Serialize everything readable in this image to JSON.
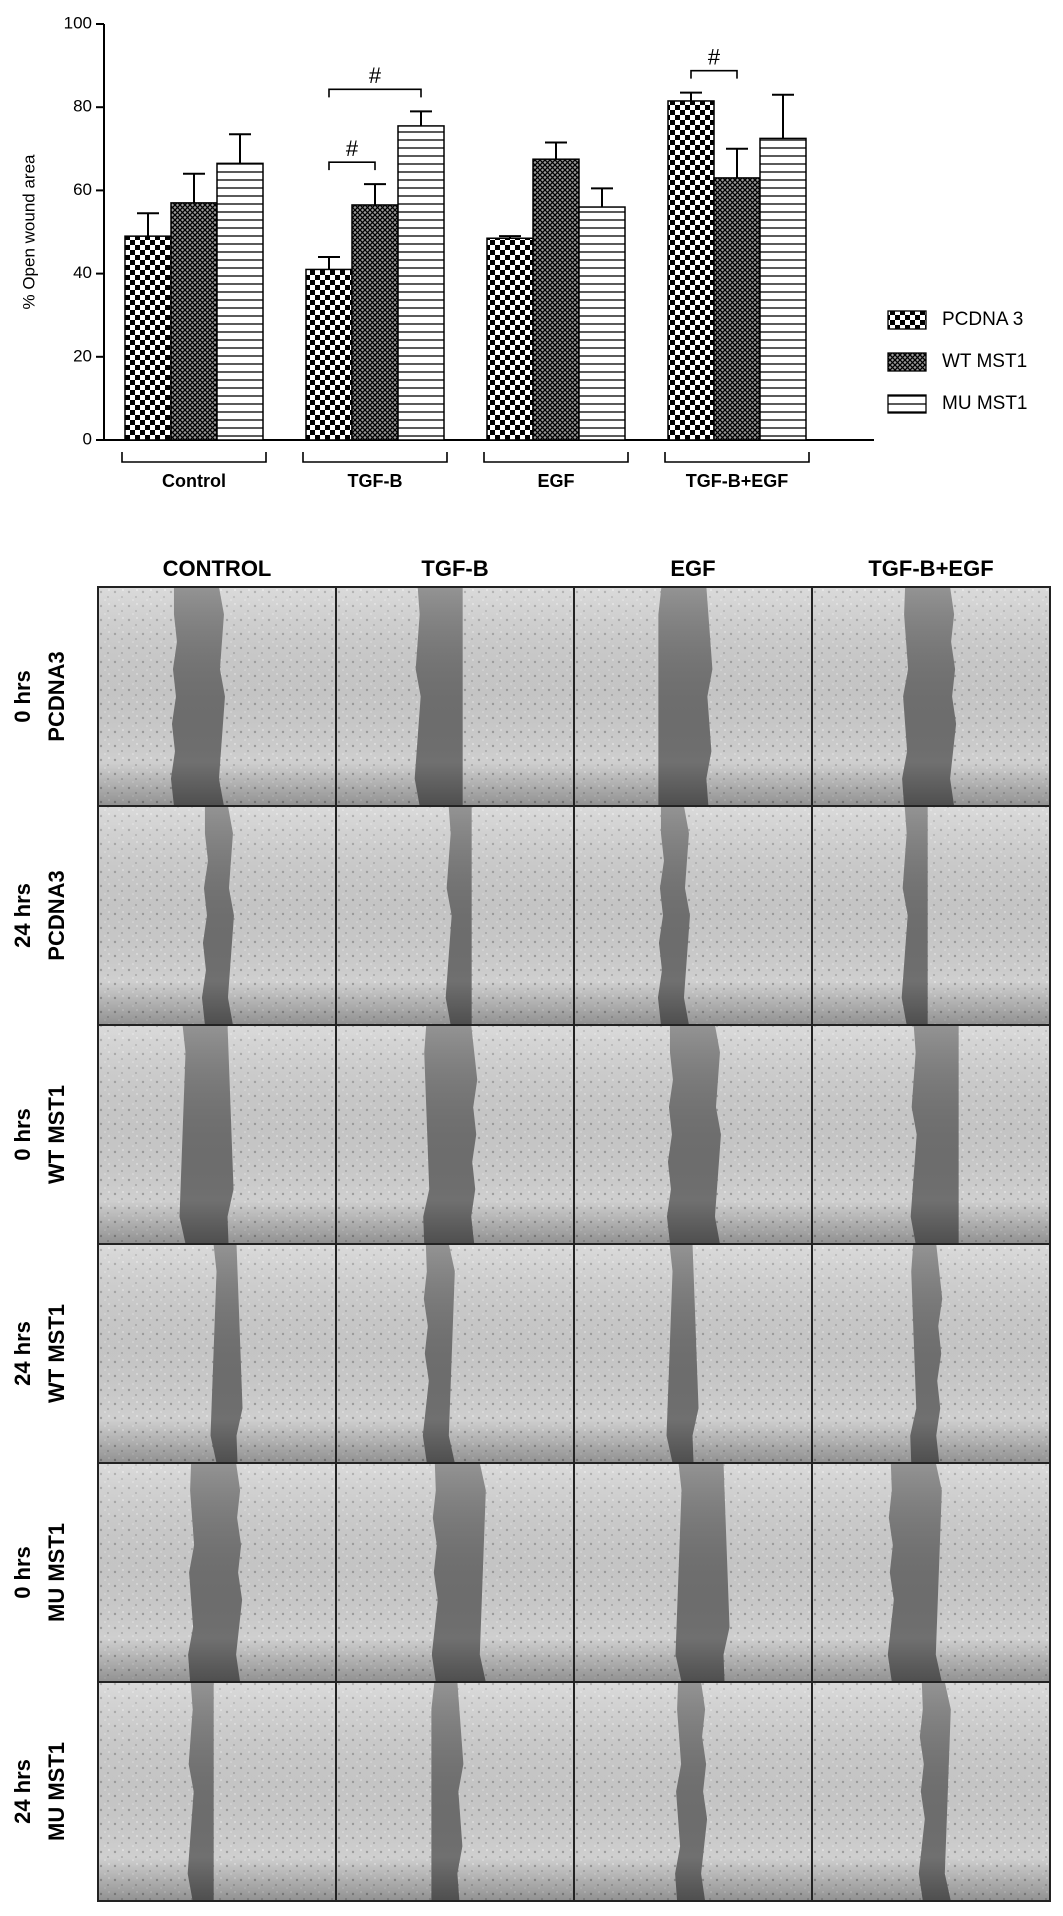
{
  "chart_data": {
    "type": "bar",
    "y_label": "% Open wound area",
    "categories": [
      "Control",
      "TGF-B",
      "EGF",
      "TGF-B+EGF"
    ],
    "series": [
      {
        "name": "PCDNA 3",
        "color": "#000000",
        "values": [
          49,
          41,
          48.5,
          81.5
        ],
        "errors": [
          5.5,
          3,
          0.5,
          2
        ]
      },
      {
        "name": "WT MST1",
        "color": "#000000",
        "values": [
          57,
          56.5,
          67.5,
          63
        ],
        "errors": [
          7,
          5,
          4,
          7
        ]
      },
      {
        "name": "MU MST1",
        "color": "#000000",
        "values": [
          66.5,
          75.5,
          56,
          72.5
        ],
        "errors": [
          7,
          3.5,
          4.5,
          10.5
        ]
      }
    ],
    "ylim": [
      0,
      100
    ],
    "yticks": [
      0,
      20,
      40,
      60,
      80,
      100
    ],
    "annotations": [
      {
        "text": "#",
        "category": 1,
        "from_series": 0,
        "to_series": 1
      },
      {
        "text": "#",
        "category": 1,
        "from_series": 0,
        "to_series": 2
      },
      {
        "text": "#",
        "category": 3,
        "from_series": 0,
        "to_series": 1
      }
    ]
  },
  "image_grid": {
    "columns": [
      "CONTROL",
      "TGF-B",
      "EGF",
      "TGF-B+EGF"
    ],
    "rows": [
      {
        "time": "0 hrs",
        "group": "PCDNA3"
      },
      {
        "time": "24 hrs",
        "group": "PCDNA3"
      },
      {
        "time": "0 hrs",
        "group": "WT MST1"
      },
      {
        "time": "24 hrs",
        "group": "WT MST1"
      },
      {
        "time": "0 hrs",
        "group": "MU MST1"
      },
      {
        "time": "24 hrs",
        "group": "MU MST1"
      }
    ]
  }
}
